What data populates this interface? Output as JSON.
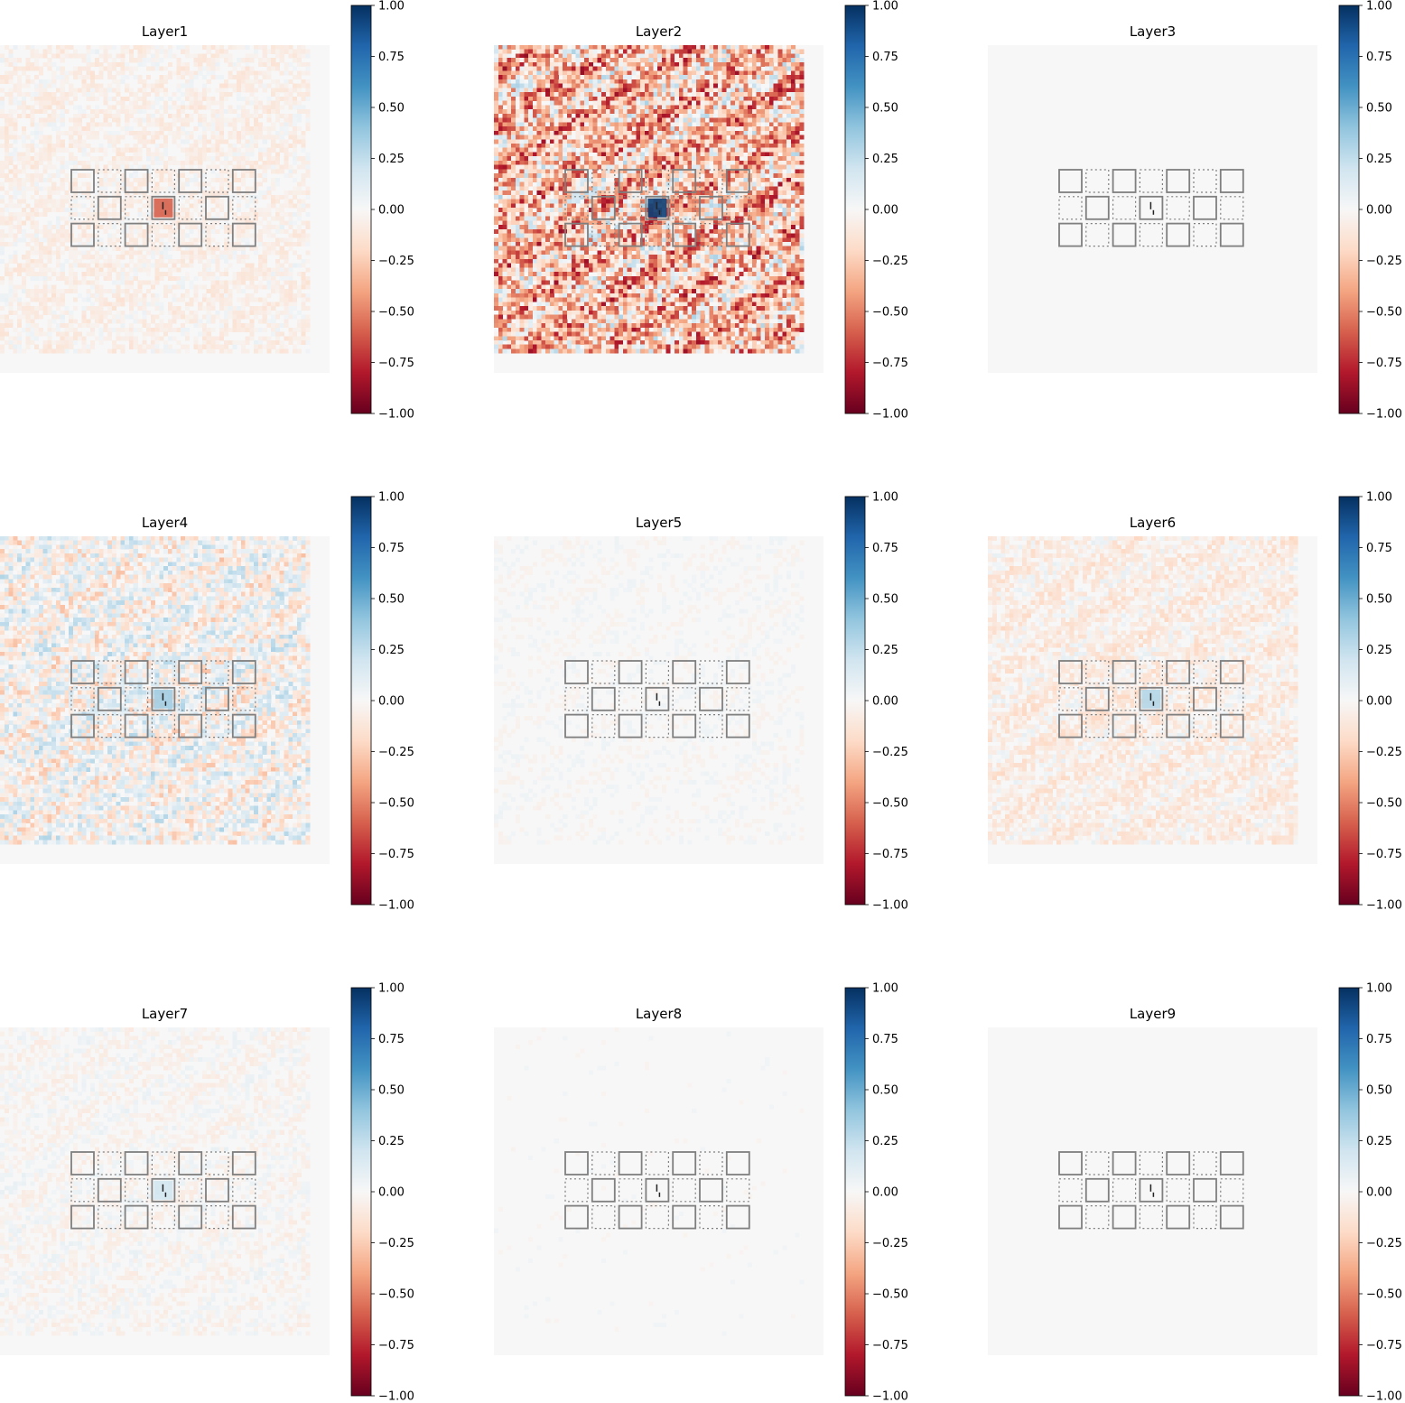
{
  "figure": {
    "colormap": "RdBu",
    "colormap_stops": [
      "#67001f",
      "#b2182b",
      "#d6604d",
      "#f4a582",
      "#fddbc7",
      "#f7f7f7",
      "#d1e5f0",
      "#92c5de",
      "#4393c3",
      "#2166ac",
      "#053061"
    ],
    "frame_color": "#7f7f7f"
  },
  "chart_data": [
    {
      "type": "heatmap",
      "title": "Layer1",
      "vmin": -1.0,
      "vmax": 1.0,
      "colorbar_ticks": [
        "1.00",
        "0.75",
        "0.50",
        "0.25",
        "0.00",
        "−0.25",
        "−0.50",
        "−0.75",
        "−1.00"
      ],
      "field": {
        "amp": 0.1,
        "bias": -0.04,
        "hot": -0.6
      }
    },
    {
      "type": "heatmap",
      "title": "Layer2",
      "vmin": -1.0,
      "vmax": 1.0,
      "colorbar_ticks": [
        "1.00",
        "0.75",
        "0.50",
        "0.25",
        "0.00",
        "−0.25",
        "−0.50",
        "−0.75",
        "−1.00"
      ],
      "field": {
        "amp": 0.55,
        "bias": -0.28,
        "hot": 0.95
      }
    },
    {
      "type": "heatmap",
      "title": "Layer3",
      "vmin": -1.0,
      "vmax": 1.0,
      "colorbar_ticks": [
        "1.00",
        "0.75",
        "0.50",
        "0.25",
        "0.00",
        "−0.25",
        "−0.50",
        "−0.75",
        "−1.00"
      ],
      "field": {
        "amp": 0.0,
        "bias": 0.0,
        "hot": 0.0
      }
    },
    {
      "type": "heatmap",
      "title": "Layer4",
      "vmin": -1.0,
      "vmax": 1.0,
      "colorbar_ticks": [
        "1.00",
        "0.75",
        "0.50",
        "0.25",
        "0.00",
        "−0.25",
        "−0.50",
        "−0.75",
        "−1.00"
      ],
      "field": {
        "amp": 0.28,
        "bias": 0.0,
        "hot": 0.35
      }
    },
    {
      "type": "heatmap",
      "title": "Layer5",
      "vmin": -1.0,
      "vmax": 1.0,
      "colorbar_ticks": [
        "1.00",
        "0.75",
        "0.50",
        "0.25",
        "0.00",
        "−0.25",
        "−0.50",
        "−0.75",
        "−1.00"
      ],
      "field": {
        "amp": 0.05,
        "bias": 0.0,
        "hot": 0.0
      }
    },
    {
      "type": "heatmap",
      "title": "Layer6",
      "vmin": -1.0,
      "vmax": 1.0,
      "colorbar_ticks": [
        "1.00",
        "0.75",
        "0.50",
        "0.25",
        "0.00",
        "−0.25",
        "−0.50",
        "−0.75",
        "−1.00"
      ],
      "field": {
        "amp": 0.14,
        "bias": -0.06,
        "hot": 0.3
      }
    },
    {
      "type": "heatmap",
      "title": "Layer7",
      "vmin": -1.0,
      "vmax": 1.0,
      "colorbar_ticks": [
        "1.00",
        "0.75",
        "0.50",
        "0.25",
        "0.00",
        "−0.25",
        "−0.50",
        "−0.75",
        "−1.00"
      ],
      "field": {
        "amp": 0.08,
        "bias": -0.01,
        "hot": 0.2
      }
    },
    {
      "type": "heatmap",
      "title": "Layer8",
      "vmin": -1.0,
      "vmax": 1.0,
      "colorbar_ticks": [
        "1.00",
        "0.75",
        "0.50",
        "0.25",
        "0.00",
        "−0.25",
        "−0.50",
        "−0.75",
        "−1.00"
      ],
      "field": {
        "amp": 0.03,
        "bias": 0.0,
        "hot": 0.0
      }
    },
    {
      "type": "heatmap",
      "title": "Layer9",
      "vmin": -1.0,
      "vmax": 1.0,
      "colorbar_ticks": [
        "1.00",
        "0.75",
        "0.50",
        "0.25",
        "0.00",
        "−0.25",
        "−0.50",
        "−0.75",
        "−1.00"
      ],
      "field": {
        "amp": 0.0,
        "bias": 0.0,
        "hot": 0.0
      }
    }
  ]
}
